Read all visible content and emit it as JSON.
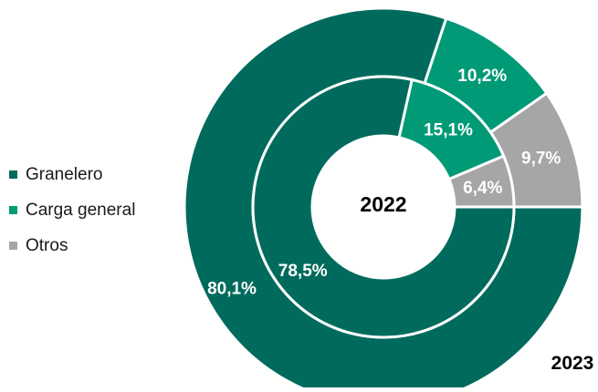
{
  "chart_data": {
    "type": "donut",
    "legend_position": "left",
    "categories": [
      "Granelero",
      "Carga general",
      "Otros"
    ],
    "colors": {
      "Granelero": "#006b5d",
      "Carga general": "#009a77",
      "Otros": "#a6a6a6"
    },
    "series": [
      {
        "name": "2023",
        "ring": "outer",
        "values": [
          80.1,
          10.2,
          9.7
        ],
        "labels": [
          "80,1%",
          "10,2%",
          "9,7%"
        ]
      },
      {
        "name": "2022",
        "ring": "inner",
        "values": [
          78.5,
          15.1,
          6.4
        ],
        "labels": [
          "78,5%",
          "15,1%",
          "6,4%"
        ]
      }
    ],
    "center_label": "2022",
    "corner_label": "2023"
  }
}
